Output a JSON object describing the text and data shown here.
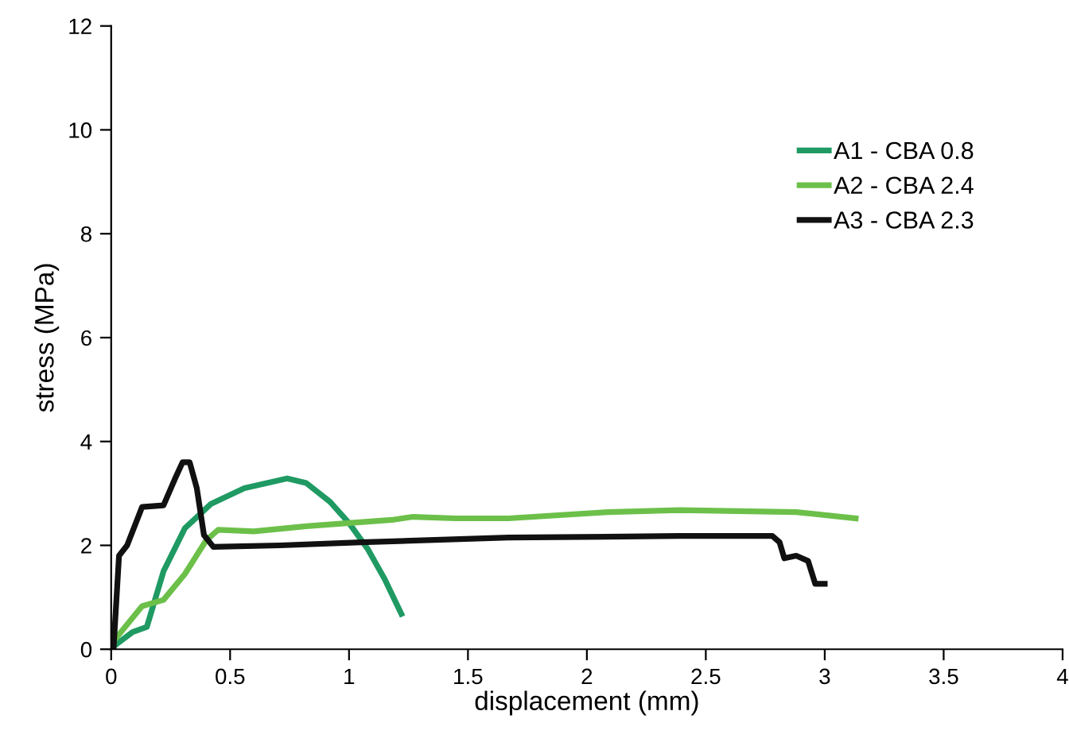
{
  "chart_data": {
    "type": "line",
    "xlabel": "displacement (mm)",
    "ylabel": "stress (MPa)",
    "xlim": [
      0,
      4
    ],
    "xticks": [
      0,
      0.5,
      1,
      1.5,
      2,
      2.5,
      3,
      3.5,
      4
    ],
    "ylim": [
      0,
      12
    ],
    "yticks": [
      0,
      2,
      4,
      6,
      8,
      10,
      12
    ],
    "grid": false,
    "legend": "top right",
    "marker": "none",
    "line_style": "solid",
    "series": [
      {
        "name": "A1 - CBA 0.8",
        "color": "#1f9a63",
        "x": [
          0,
          0.09,
          0.15,
          0.22,
          0.31,
          0.42,
          0.56,
          0.74,
          0.82,
          0.92,
          1.0,
          1.08,
          1.15,
          1.22
        ],
        "values": [
          0.02,
          0.33,
          0.43,
          1.5,
          2.33,
          2.8,
          3.1,
          3.29,
          3.2,
          2.84,
          2.43,
          1.92,
          1.35,
          0.68
        ]
      },
      {
        "name": "A2 - CBA 2.4",
        "color": "#6cc04a",
        "x": [
          0,
          0.13,
          0.22,
          0.31,
          0.4,
          0.45,
          0.6,
          0.82,
          1.0,
          1.18,
          1.27,
          1.45,
          1.67,
          2.09,
          2.39,
          2.88,
          3.13
        ],
        "values": [
          0.1,
          0.83,
          0.95,
          1.45,
          2.1,
          2.3,
          2.27,
          2.37,
          2.43,
          2.49,
          2.55,
          2.52,
          2.52,
          2.64,
          2.68,
          2.64,
          2.52
        ]
      },
      {
        "name": "A3 - CBA 2.3",
        "color": "#111111",
        "x": [
          0.01,
          0.033,
          0.067,
          0.13,
          0.22,
          0.27,
          0.3,
          0.33,
          0.36,
          0.39,
          0.43,
          0.71,
          1.05,
          1.67,
          2.39,
          2.78,
          2.81,
          2.83,
          2.88,
          2.93,
          2.96,
          3.0
        ],
        "values": [
          0.02,
          1.8,
          2.0,
          2.74,
          2.77,
          3.3,
          3.6,
          3.6,
          3.1,
          2.2,
          1.97,
          2.0,
          2.06,
          2.15,
          2.18,
          2.18,
          2.06,
          1.75,
          1.8,
          1.7,
          1.26,
          1.26
        ]
      }
    ]
  }
}
